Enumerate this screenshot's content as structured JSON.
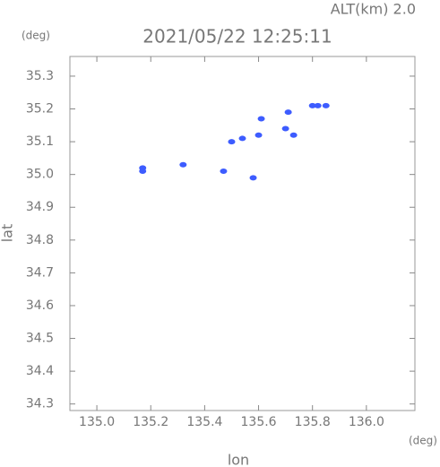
{
  "chart_data": {
    "type": "scatter",
    "header": "ALT(km) 2.0",
    "title": "2021/05/22 12:25:11",
    "y_unit": "(deg)",
    "x_unit": "(deg)",
    "xlabel": "lon",
    "ylabel": "lat",
    "xlim": [
      134.9,
      136.18
    ],
    "ylim": [
      34.28,
      35.36
    ],
    "xticks": [
      {
        "value": 135.0,
        "label": "135.0"
      },
      135.2,
      135.4,
      135.6,
      135.8,
      {
        "value": 136.0,
        "label": "136.0"
      }
    ],
    "yticks": [
      34.3,
      34.4,
      34.5,
      34.6,
      34.7,
      34.8,
      34.9,
      {
        "value": 35.0,
        "label": "35.0"
      },
      35.1,
      35.2,
      35.3
    ],
    "grid": false,
    "series": [
      {
        "color": "#3d5cff",
        "x": [
          135.17,
          135.17,
          135.32,
          135.47,
          135.5,
          135.54,
          135.58,
          135.6,
          135.61,
          135.7,
          135.71,
          135.73,
          135.8,
          135.82,
          135.85
        ],
        "values": [
          35.02,
          35.01,
          35.03,
          35.01,
          35.1,
          35.11,
          34.99,
          35.12,
          35.17,
          35.14,
          35.19,
          35.12,
          35.21,
          35.21,
          35.21
        ]
      }
    ]
  }
}
